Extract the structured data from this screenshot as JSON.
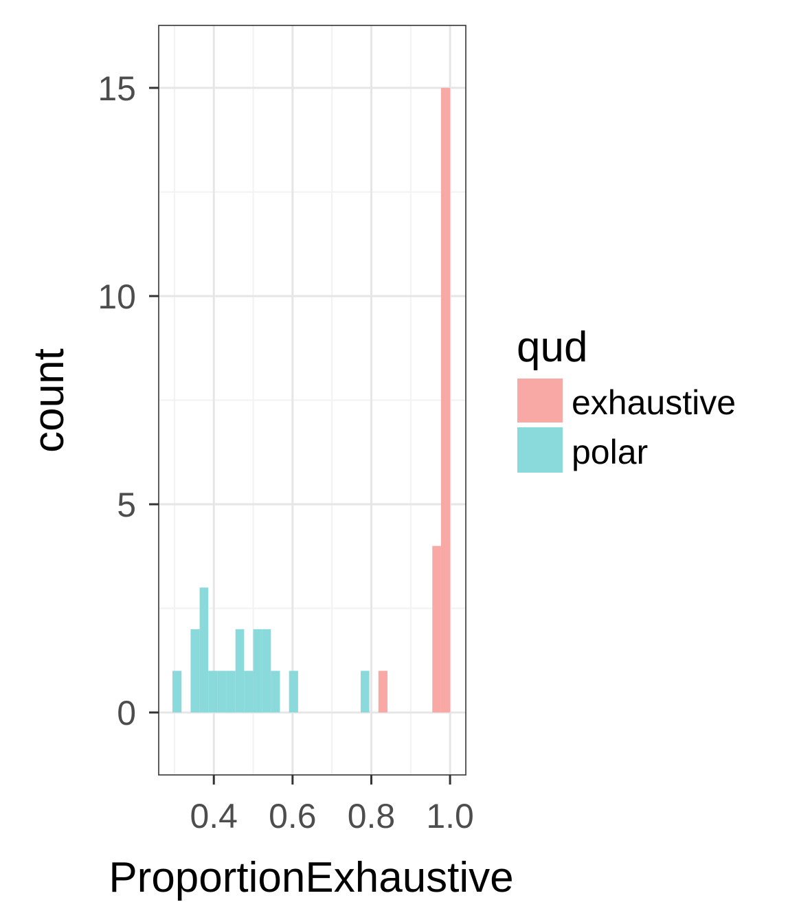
{
  "chart_data": {
    "type": "bar",
    "subtype": "overlapping-histogram",
    "title": "",
    "xlabel": "ProportionExhaustive",
    "ylabel": "count",
    "xlim": [
      0.26,
      1.04
    ],
    "ylim": [
      -1.5,
      16.5
    ],
    "x_ticks": [
      "0.4",
      "0.6",
      "0.8",
      "1.0"
    ],
    "x_tick_values": [
      0.4,
      0.6,
      0.8,
      1.0
    ],
    "y_ticks": [
      "0",
      "5",
      "10",
      "15"
    ],
    "y_tick_values": [
      0,
      5,
      10,
      15
    ],
    "grid": true,
    "legend": {
      "title": "qud",
      "position": "right",
      "entries": [
        {
          "label": "exhaustive",
          "color": "#f8a8a5"
        },
        {
          "label": "polar",
          "color": "#8adadb"
        }
      ]
    },
    "series": [
      {
        "name": "exhaustive",
        "color": "#f8a8a5",
        "bins": [
          {
            "x0": 0.818,
            "x1": 0.841,
            "count": 1
          },
          {
            "x0": 0.955,
            "x1": 0.977,
            "count": 4
          },
          {
            "x0": 0.977,
            "x1": 1.0,
            "count": 15
          }
        ]
      },
      {
        "name": "polar",
        "color": "#8adadb",
        "bins": [
          {
            "x0": 0.295,
            "x1": 0.318,
            "count": 1
          },
          {
            "x0": 0.341,
            "x1": 0.364,
            "count": 2
          },
          {
            "x0": 0.364,
            "x1": 0.386,
            "count": 3
          },
          {
            "x0": 0.386,
            "x1": 0.409,
            "count": 1
          },
          {
            "x0": 0.409,
            "x1": 0.432,
            "count": 1
          },
          {
            "x0": 0.432,
            "x1": 0.455,
            "count": 1
          },
          {
            "x0": 0.455,
            "x1": 0.477,
            "count": 2
          },
          {
            "x0": 0.477,
            "x1": 0.5,
            "count": 1
          },
          {
            "x0": 0.5,
            "x1": 0.523,
            "count": 2
          },
          {
            "x0": 0.523,
            "x1": 0.545,
            "count": 2
          },
          {
            "x0": 0.545,
            "x1": 0.568,
            "count": 1
          },
          {
            "x0": 0.591,
            "x1": 0.614,
            "count": 1
          },
          {
            "x0": 0.773,
            "x1": 0.795,
            "count": 1
          }
        ]
      }
    ]
  },
  "colors": {
    "panel_border": "#333333",
    "grid_major": "#e6e6e6",
    "grid_minor": "#f2f2f2",
    "tick": "#333333"
  }
}
